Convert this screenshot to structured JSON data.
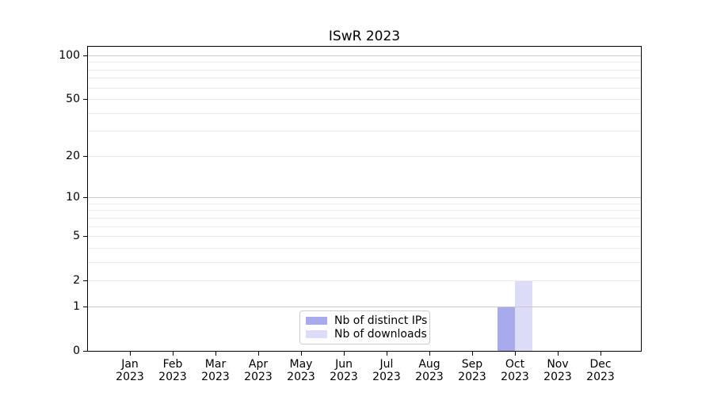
{
  "title": "ISwR 2023",
  "chart_data": {
    "type": "bar",
    "title": "ISwR 2023",
    "categories": [
      "Jan",
      "Feb",
      "Mar",
      "Apr",
      "May",
      "Jun",
      "Jul",
      "Aug",
      "Sep",
      "Oct",
      "Nov",
      "Dec"
    ],
    "x_year_label": "2023",
    "series": [
      {
        "name": "Nb of distinct IPs",
        "color": "#a9a9ee",
        "values": [
          0,
          0,
          0,
          0,
          0,
          0,
          0,
          0,
          0,
          1,
          0,
          0
        ]
      },
      {
        "name": "Nb of downloads",
        "color": "#dcdcf8",
        "values": [
          0,
          0,
          0,
          0,
          0,
          0,
          0,
          0,
          0,
          2,
          0,
          0
        ]
      }
    ],
    "yscale": "log10(value+1)",
    "ylim": [
      0,
      116
    ],
    "yticks": [
      0,
      1,
      2,
      5,
      10,
      20,
      50,
      100
    ],
    "major_gridlines": [
      1,
      10,
      100
    ],
    "minor_gridlines": [
      2,
      3,
      4,
      5,
      6,
      7,
      8,
      9,
      20,
      30,
      40,
      50,
      60,
      70,
      80,
      90
    ],
    "grid": "horizontal only",
    "legend_position": "lower center"
  },
  "colors": {
    "bar_distinct_ips": "#a9a9ee",
    "bar_downloads": "#dcdcf8",
    "grid_major": "#c8c8c8",
    "grid_minor": "#ebebeb",
    "axis": "#000000",
    "legend_border": "#cccccc",
    "background": "#ffffff"
  }
}
